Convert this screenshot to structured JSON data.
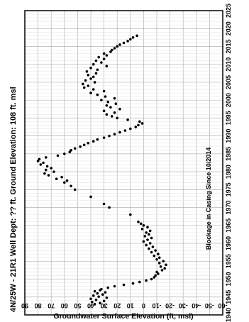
{
  "chart_data": {
    "type": "scatter",
    "orientation": "rotated-90-ccw",
    "title": "4N/25W - 21R1   Well Dept: ?? ft.   Ground Elevation: 108 ft. msl",
    "annotation": "Blockage in Casing Since 10/2014",
    "xlabel": "",
    "ylabel": "Groundwater Surface Elevation (ft, msl)",
    "xlim": [
      1940,
      2025
    ],
    "ylim": [
      -60,
      90
    ],
    "x_ticks": [
      "1940",
      "1945",
      "1950",
      "1955",
      "1960",
      "1965",
      "1970",
      "1975",
      "1980",
      "1985",
      "1990",
      "1995",
      "2000",
      "2005",
      "2010",
      "2015",
      "2020",
      "2025"
    ],
    "y_ticks": [
      "90",
      "80",
      "70",
      "60",
      "50",
      "40",
      "30",
      "20",
      "10",
      "0",
      "-10",
      "-20",
      "-30",
      "-40",
      "-50",
      "-60"
    ],
    "grid": true,
    "marker_color": "#000000",
    "series": [
      {
        "points": [
          [
            1943.0,
            37
          ],
          [
            1943.3,
            33
          ],
          [
            1943.6,
            39
          ],
          [
            1943.9,
            30
          ],
          [
            1944.2,
            36
          ],
          [
            1944.5,
            40
          ],
          [
            1944.8,
            28
          ],
          [
            1945.1,
            34
          ],
          [
            1945.4,
            38
          ],
          [
            1945.7,
            31
          ],
          [
            1946.0,
            35
          ],
          [
            1946.3,
            29
          ],
          [
            1946.6,
            37
          ],
          [
            1946.9,
            33
          ],
          [
            1947.2,
            32
          ],
          [
            1947.6,
            27
          ],
          [
            1948.0,
            22
          ],
          [
            1948.4,
            15
          ],
          [
            1948.8,
            8
          ],
          [
            1949.2,
            3
          ],
          [
            1949.6,
            -2
          ],
          [
            1950.0,
            -6
          ],
          [
            1950.5,
            -8
          ],
          [
            1951.0,
            -9
          ],
          [
            1951.5,
            -11
          ],
          [
            1952.0,
            -10
          ],
          [
            1952.5,
            -14
          ],
          [
            1953.0,
            -16
          ],
          [
            1953.5,
            -13
          ],
          [
            1954.0,
            -17
          ],
          [
            1954.5,
            -12
          ],
          [
            1955.0,
            -15
          ],
          [
            1955.5,
            -10
          ],
          [
            1956.0,
            -12
          ],
          [
            1956.5,
            -8
          ],
          [
            1957.0,
            -11
          ],
          [
            1957.5,
            -6
          ],
          [
            1958.0,
            -9
          ],
          [
            1958.5,
            -4
          ],
          [
            1959.0,
            -7
          ],
          [
            1959.5,
            -2
          ],
          [
            1960.0,
            -5
          ],
          [
            1960.5,
            0
          ],
          [
            1961.0,
            -3
          ],
          [
            1961.5,
            -6
          ],
          [
            1962.0,
            -1
          ],
          [
            1962.5,
            -4
          ],
          [
            1963.0,
            -2
          ],
          [
            1963.5,
            -5
          ],
          [
            1964.0,
            1
          ],
          [
            1964.5,
            -3
          ],
          [
            1965.0,
            0
          ],
          [
            1965.5,
            2
          ],
          [
            1966.0,
            4
          ],
          [
            1968.0,
            10
          ],
          [
            1970.0,
            26
          ],
          [
            1971.0,
            30
          ],
          [
            1973.0,
            40
          ],
          [
            1975.0,
            52
          ],
          [
            1976.0,
            55
          ],
          [
            1977.0,
            60
          ],
          [
            1977.5,
            58
          ],
          [
            1978.0,
            66
          ],
          [
            1978.5,
            62
          ],
          [
            1979.0,
            72
          ],
          [
            1979.5,
            75
          ],
          [
            1980.0,
            68
          ],
          [
            1980.5,
            74
          ],
          [
            1981.0,
            70
          ],
          [
            1981.5,
            73
          ],
          [
            1982.0,
            78
          ],
          [
            1982.5,
            76
          ],
          [
            1983.0,
            80
          ],
          [
            1983.5,
            79
          ],
          [
            1984.0,
            74
          ],
          [
            1984.5,
            65
          ],
          [
            1985.0,
            60
          ],
          [
            1985.5,
            56
          ],
          [
            1986.0,
            55
          ],
          [
            1986.5,
            52
          ],
          [
            1987.0,
            48
          ],
          [
            1987.5,
            45
          ],
          [
            1988.0,
            42
          ],
          [
            1988.5,
            38
          ],
          [
            1989.0,
            35
          ],
          [
            1989.5,
            30
          ],
          [
            1990.0,
            26
          ],
          [
            1990.5,
            22
          ],
          [
            1991.0,
            18
          ],
          [
            1991.5,
            14
          ],
          [
            1992.0,
            10
          ],
          [
            1992.5,
            6
          ],
          [
            1993.0,
            4
          ],
          [
            1993.5,
            1
          ],
          [
            1994.0,
            3
          ],
          [
            1994.5,
            12
          ],
          [
            1995.0,
            20
          ],
          [
            1995.5,
            24
          ],
          [
            1996.0,
            28
          ],
          [
            1996.5,
            22
          ],
          [
            1997.0,
            30
          ],
          [
            1997.5,
            18
          ],
          [
            1998.0,
            25
          ],
          [
            1998.5,
            28
          ],
          [
            1999.0,
            21
          ],
          [
            1999.5,
            27
          ],
          [
            2000.0,
            32
          ],
          [
            2000.5,
            22
          ],
          [
            2001.0,
            29
          ],
          [
            2001.5,
            35
          ],
          [
            2002.0,
            40
          ],
          [
            2002.5,
            30
          ],
          [
            2003.0,
            38
          ],
          [
            2003.5,
            45
          ],
          [
            2004.0,
            42
          ],
          [
            2004.5,
            46
          ],
          [
            2005.0,
            37
          ],
          [
            2005.5,
            44
          ],
          [
            2006.0,
            40
          ],
          [
            2006.5,
            38
          ],
          [
            2007.0,
            42
          ],
          [
            2007.5,
            36
          ],
          [
            2008.0,
            43
          ],
          [
            2008.5,
            35
          ],
          [
            2009.0,
            40
          ],
          [
            2009.5,
            28
          ],
          [
            2010.0,
            38
          ],
          [
            2010.5,
            32
          ],
          [
            2011.0,
            36
          ],
          [
            2011.5,
            30
          ],
          [
            2012.0,
            34
          ],
          [
            2012.5,
            28
          ],
          [
            2013.0,
            30
          ],
          [
            2013.5,
            25
          ],
          [
            2014.0,
            24
          ],
          [
            2014.5,
            22
          ],
          [
            2015.0,
            20
          ],
          [
            2015.5,
            18
          ],
          [
            2016.0,
            15
          ],
          [
            2016.5,
            12
          ],
          [
            2017.0,
            10
          ],
          [
            2017.5,
            8
          ],
          [
            2018.0,
            5
          ]
        ]
      }
    ]
  }
}
